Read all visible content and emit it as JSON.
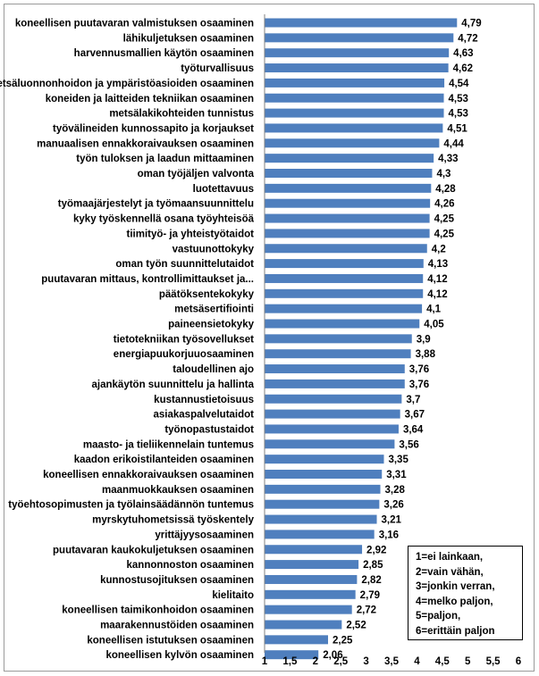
{
  "chart_data": {
    "type": "bar",
    "orientation": "horizontal",
    "categories": [
      "koneellisen puutavaran valmistuksen osaaminen",
      "lähikuljetuksen osaaminen",
      "harvennusmallien käytön osaaminen",
      "työturvallisuus",
      "metsäluonnonhoidon ja ympäristöasioiden osaaminen",
      "koneiden ja laitteiden tekniikan osaaminen",
      "metsälakikohteiden tunnistus",
      "työvälineiden kunnossapito ja korjaukset",
      "manuaalisen ennakkoraivauksen osaaminen",
      "työn tuloksen ja laadun mittaaminen",
      "oman työjäljen valvonta",
      "luotettavuus",
      "työmaajärjestelyt ja työmaansuunnittelu",
      "kyky työskennellä osana työyhteisöä",
      "tiimityö- ja yhteistyötaidot",
      "vastuunottokyky",
      "oman työn suunnittelutaidot",
      "puutavaran mittaus, kontrollimittaukset ja...",
      "päätöksentekokyky",
      "metsäsertifiointi",
      "paineensietokyky",
      "tietotekniikan työsovellukset",
      "energiapuukorjuuosaaminen",
      "taloudellinen ajo",
      "ajankäytön suunnittelu ja hallinta",
      "kustannustietoisuus",
      "asiakaspalvelutaidot",
      "työnopastustaidot",
      "maasto- ja tieliikennelain tuntemus",
      "kaadon erikoistilanteiden osaaminen",
      "koneellisen ennakkoraivauksen osaaminen",
      "maanmuokkauksen osaaminen",
      "työehtosopimusten ja työlainsäädännön tuntemus",
      "myrskytuhometsissä työskentely",
      "yrittäjyysosaaminen",
      "puutavaran kaukokuljetuksen osaaminen",
      "kannonnoston osaaminen",
      "kunnostusojituksen osaaminen",
      "kielitaito",
      "koneellisen taimikonhoidon osaaminen",
      "maarakennustöiden osaaminen",
      "koneellisen istutuksen osaaminen",
      "koneellisen kylvön osaaminen"
    ],
    "values": [
      4.79,
      4.72,
      4.63,
      4.62,
      4.54,
      4.53,
      4.53,
      4.51,
      4.44,
      4.33,
      4.3,
      4.28,
      4.26,
      4.25,
      4.25,
      4.2,
      4.13,
      4.12,
      4.12,
      4.1,
      4.05,
      3.9,
      3.88,
      3.76,
      3.76,
      3.7,
      3.67,
      3.64,
      3.56,
      3.35,
      3.31,
      3.28,
      3.26,
      3.21,
      3.16,
      2.92,
      2.85,
      2.82,
      2.79,
      2.72,
      2.52,
      2.25,
      2.06
    ],
    "value_labels": [
      "4,79",
      "4,72",
      "4,63",
      "4,62",
      "4,54",
      "4,53",
      "4,53",
      "4,51",
      "4,44",
      "4,33",
      "4,3",
      "4,28",
      "4,26",
      "4,25",
      "4,25",
      "4,2",
      "4,13",
      "4,12",
      "4,12",
      "4,1",
      "4,05",
      "3,9",
      "3,88",
      "3,76",
      "3,76",
      "3,7",
      "3,67",
      "3,64",
      "3,56",
      "3,35",
      "3,31",
      "3,28",
      "3,26",
      "3,21",
      "3,16",
      "2,92",
      "2,85",
      "2,82",
      "2,79",
      "2,72",
      "2,52",
      "2,25",
      "2,06"
    ],
    "x_ticks": [
      1,
      1.5,
      2,
      2.5,
      3,
      3.5,
      4,
      4.5,
      5,
      5.5,
      6
    ],
    "x_tick_labels": [
      "1",
      "1,5",
      "2",
      "2,5",
      "3",
      "3,5",
      "4",
      "4,5",
      "5",
      "5,5",
      "6"
    ],
    "xlim": [
      1,
      6
    ],
    "title": "",
    "xlabel": "",
    "ylabel": "",
    "bar_color": "#4f7fbe",
    "grid": false
  },
  "legend": {
    "lines": [
      "1=ei lainkaan,",
      "2=vain vähän,",
      "3=jonkin verran,",
      "4=melko paljon,",
      "5=paljon,",
      "6=erittäin paljon"
    ]
  }
}
